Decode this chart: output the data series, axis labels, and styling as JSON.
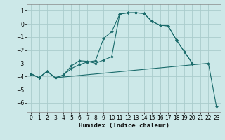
{
  "xlabel": "Humidex (Indice chaleur)",
  "bg_color": "#cce8e8",
  "grid_color": "#aacccc",
  "line_color": "#1a6b6b",
  "xlim": [
    -0.5,
    23.5
  ],
  "ylim": [
    -6.7,
    1.5
  ],
  "yticks": [
    1,
    0,
    -1,
    -2,
    -3,
    -4,
    -5,
    -6
  ],
  "xticks": [
    0,
    1,
    2,
    3,
    4,
    5,
    6,
    7,
    8,
    9,
    10,
    11,
    12,
    13,
    14,
    15,
    16,
    17,
    18,
    19,
    20,
    21,
    22,
    23
  ],
  "line1_x": [
    0,
    1,
    2,
    3,
    4,
    5,
    6,
    7,
    8,
    9,
    10,
    11,
    12,
    13,
    14,
    15,
    16,
    17,
    18,
    19,
    20
  ],
  "line1_y": [
    -3.8,
    -4.1,
    -3.6,
    -4.1,
    -3.9,
    -3.4,
    -3.1,
    -2.9,
    -2.8,
    -1.1,
    -0.6,
    0.75,
    0.85,
    0.85,
    0.8,
    0.2,
    -0.1,
    -0.15,
    -1.2,
    -2.1,
    -3.0
  ],
  "line2_x": [
    0,
    1,
    2,
    3,
    4,
    5,
    6,
    7,
    8,
    9,
    10,
    11,
    12,
    13,
    14,
    15,
    16,
    17,
    18,
    19,
    20
  ],
  "line2_y": [
    -3.8,
    -4.1,
    -3.6,
    -4.1,
    -3.9,
    -3.2,
    -2.8,
    -2.85,
    -3.0,
    -2.75,
    -2.5,
    0.75,
    0.85,
    0.85,
    0.8,
    0.2,
    -0.1,
    -0.15,
    -1.2,
    -2.1,
    -3.0
  ],
  "line3_x": [
    0,
    1,
    2,
    3,
    22,
    23
  ],
  "line3_y": [
    -3.8,
    -4.1,
    -3.6,
    -4.1,
    -3.0,
    -6.3
  ]
}
